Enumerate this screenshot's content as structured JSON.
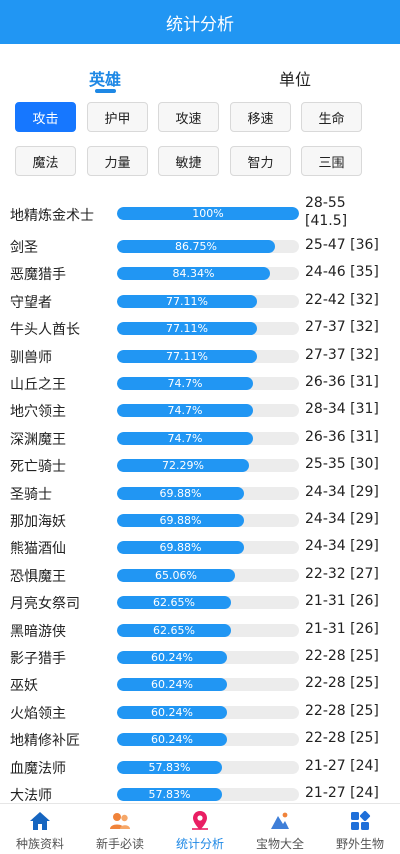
{
  "header": {
    "title": "统计分析"
  },
  "tabs": [
    {
      "label": "英雄",
      "active": true
    },
    {
      "label": "单位",
      "active": false
    }
  ],
  "filters": [
    {
      "label": "攻击",
      "selected": true
    },
    {
      "label": "护甲",
      "selected": false
    },
    {
      "label": "攻速",
      "selected": false
    },
    {
      "label": "移速",
      "selected": false
    },
    {
      "label": "生命",
      "selected": false
    },
    {
      "label": "魔法",
      "selected": false
    },
    {
      "label": "力量",
      "selected": false
    },
    {
      "label": "敏捷",
      "selected": false
    },
    {
      "label": "智力",
      "selected": false
    },
    {
      "label": "三围",
      "selected": false
    }
  ],
  "stats": [
    {
      "name": "地精炼金术士",
      "percent": 100,
      "percent_label": "100%",
      "range": "28-55",
      "avg": "[41.5]"
    },
    {
      "name": "剑圣",
      "percent": 86.75,
      "percent_label": "86.75%",
      "range": "25-47 [36]"
    },
    {
      "name": "恶魔猎手",
      "percent": 84.34,
      "percent_label": "84.34%",
      "range": "24-46 [35]"
    },
    {
      "name": "守望者",
      "percent": 77.11,
      "percent_label": "77.11%",
      "range": "22-42 [32]"
    },
    {
      "name": "牛头人酋长",
      "percent": 77.11,
      "percent_label": "77.11%",
      "range": "27-37 [32]"
    },
    {
      "name": "驯兽师",
      "percent": 77.11,
      "percent_label": "77.11%",
      "range": "27-37 [32]"
    },
    {
      "name": "山丘之王",
      "percent": 74.7,
      "percent_label": "74.7%",
      "range": "26-36 [31]"
    },
    {
      "name": "地穴领主",
      "percent": 74.7,
      "percent_label": "74.7%",
      "range": "28-34 [31]"
    },
    {
      "name": "深渊魔王",
      "percent": 74.7,
      "percent_label": "74.7%",
      "range": "26-36 [31]"
    },
    {
      "name": "死亡骑士",
      "percent": 72.29,
      "percent_label": "72.29%",
      "range": "25-35 [30]"
    },
    {
      "name": "圣骑士",
      "percent": 69.88,
      "percent_label": "69.88%",
      "range": "24-34 [29]"
    },
    {
      "name": "那加海妖",
      "percent": 69.88,
      "percent_label": "69.88%",
      "range": "24-34 [29]"
    },
    {
      "name": "熊猫酒仙",
      "percent": 69.88,
      "percent_label": "69.88%",
      "range": "24-34 [29]"
    },
    {
      "name": "恐惧魔王",
      "percent": 65.06,
      "percent_label": "65.06%",
      "range": "22-32 [27]"
    },
    {
      "name": "月亮女祭司",
      "percent": 62.65,
      "percent_label": "62.65%",
      "range": "21-31 [26]"
    },
    {
      "name": "黑暗游侠",
      "percent": 62.65,
      "percent_label": "62.65%",
      "range": "21-31 [26]"
    },
    {
      "name": "影子猎手",
      "percent": 60.24,
      "percent_label": "60.24%",
      "range": "22-28 [25]"
    },
    {
      "name": "巫妖",
      "percent": 60.24,
      "percent_label": "60.24%",
      "range": "22-28 [25]"
    },
    {
      "name": "火焰领主",
      "percent": 60.24,
      "percent_label": "60.24%",
      "range": "22-28 [25]"
    },
    {
      "name": "地精修补匠",
      "percent": 60.24,
      "percent_label": "60.24%",
      "range": "22-28 [25]"
    },
    {
      "name": "血魔法师",
      "percent": 57.83,
      "percent_label": "57.83%",
      "range": "21-27 [24]"
    },
    {
      "name": "大法师",
      "percent": 57.83,
      "percent_label": "57.83%",
      "range": "21-27 [24]"
    }
  ],
  "bottom_nav": [
    {
      "label": "种族资料",
      "icon": "home-icon",
      "color": "#1565c0",
      "active": false
    },
    {
      "label": "新手必读",
      "icon": "users-icon",
      "color": "#f0833a",
      "active": false
    },
    {
      "label": "统计分析",
      "icon": "location-pin-icon",
      "color": "#e91e63",
      "active": true
    },
    {
      "label": "宝物大全",
      "icon": "treasure-icon",
      "color": "#3f7fd8",
      "active": false
    },
    {
      "label": "野外生物",
      "icon": "grid-icon",
      "color": "#1e6fd9",
      "active": false
    }
  ],
  "colors": {
    "primary": "#2196f3",
    "selected_filter": "#1677ff",
    "bar_track": "#ececec"
  }
}
